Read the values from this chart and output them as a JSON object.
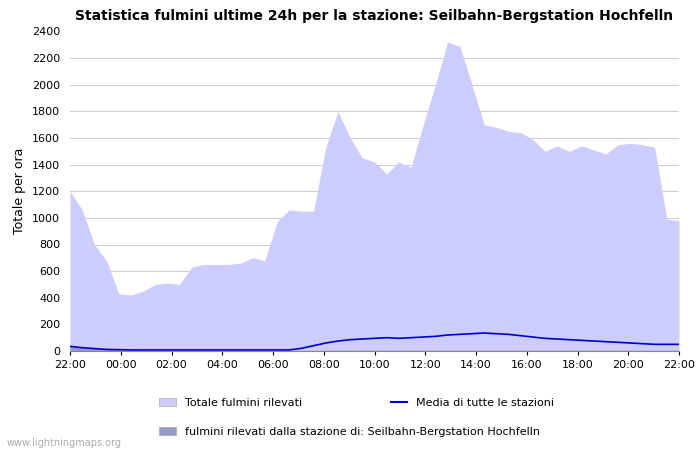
{
  "title": "Statistica fulmini ultime 24h per la stazione: Seilbahn-Bergstation Hochfelln",
  "ylabel": "Totale per ora",
  "watermark": "www.lightningmaps.org",
  "x_ticks": [
    "22:00",
    "00:00",
    "02:00",
    "04:00",
    "06:00",
    "08:00",
    "10:00",
    "12:00",
    "14:00",
    "16:00",
    "18:00",
    "20:00",
    "22:00"
  ],
  "ylim": [
    0,
    2400
  ],
  "yticks": [
    0,
    200,
    400,
    600,
    800,
    1000,
    1200,
    1400,
    1600,
    1800,
    2000,
    2200,
    2400
  ],
  "fill_color_total": "#ccccff",
  "fill_color_station": "#9999cc",
  "line_color_media": "#0000cc",
  "legend_labels": [
    "Totale fulmini rilevati",
    "Media di tutte le stazioni",
    "fulmini rilevati dalla stazione di: Seilbahn-Bergstation Hochfelln"
  ],
  "total_values": [
    1200,
    1060,
    800,
    680,
    430,
    420,
    450,
    500,
    510,
    500,
    630,
    650,
    650,
    650,
    660,
    700,
    680,
    970,
    1060,
    1050,
    1050,
    1530,
    1800,
    1600,
    1450,
    1420,
    1330,
    1420,
    1380,
    1700,
    2000,
    2320,
    2290,
    2000,
    1700,
    1680,
    1650,
    1640,
    1590,
    1500,
    1540,
    1500,
    1540,
    1510,
    1480,
    1550,
    1560,
    1550,
    1530,
    990,
    980
  ],
  "station_values": [
    40,
    30,
    20,
    15,
    10,
    8,
    7,
    6,
    5,
    5,
    5,
    5,
    5,
    5,
    5,
    5,
    5,
    5,
    5,
    5,
    5,
    5,
    5,
    5,
    5,
    5,
    5,
    5,
    5,
    5,
    5,
    5,
    5,
    5,
    5,
    5,
    5,
    5,
    5,
    5,
    5,
    5,
    5,
    5,
    5,
    5,
    5,
    5,
    5,
    5,
    5
  ],
  "media_values": [
    35,
    25,
    18,
    12,
    10,
    8,
    8,
    8,
    8,
    8,
    8,
    8,
    8,
    8,
    8,
    8,
    8,
    8,
    8,
    20,
    40,
    60,
    75,
    85,
    90,
    95,
    100,
    95,
    100,
    105,
    110,
    120,
    125,
    130,
    135,
    130,
    125,
    115,
    105,
    95,
    90,
    85,
    80,
    75,
    70,
    65,
    60,
    55,
    50,
    50,
    50
  ]
}
